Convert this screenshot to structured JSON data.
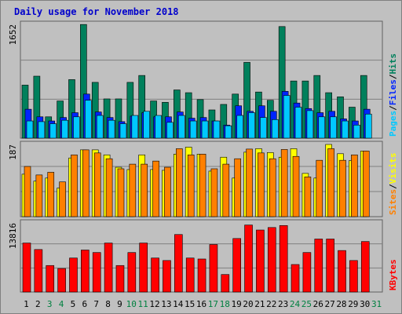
{
  "title": "Daily usage for November 2018",
  "colors": {
    "hits": "#00805c",
    "files": "#0024ff",
    "pages": "#00c8ff",
    "visits": "#ffff00",
    "sites": "#ff8000",
    "kbytes": "#ff0000",
    "weekend_day_label": "#008040",
    "weekday_label": "#000000",
    "background": "#c0c0c0",
    "grid": "#808080"
  },
  "chart_data": [
    {
      "type": "bar",
      "panel": "hits",
      "ymax_label": "1652",
      "ylim": [
        0,
        1652
      ],
      "legend": [
        "Pages",
        "/",
        "Files",
        "/",
        "Hits"
      ],
      "categories": [
        "1",
        "2",
        "3",
        "4",
        "5",
        "6",
        "7",
        "8",
        "9",
        "10",
        "11",
        "12",
        "13",
        "14",
        "15",
        "16",
        "17",
        "18",
        "19",
        "20",
        "21",
        "22",
        "23",
        "24",
        "25",
        "26",
        "27",
        "28",
        "29",
        "30",
        "31"
      ],
      "weekend_days": [
        3,
        4,
        10,
        11,
        17,
        18,
        24,
        25,
        31
      ],
      "series": [
        {
          "name": "Hits",
          "values": [
            770,
            900,
            310,
            540,
            850,
            1650,
            810,
            570,
            570,
            810,
            910,
            540,
            520,
            700,
            660,
            560,
            410,
            490,
            640,
            1100,
            670,
            550,
            1620,
            830,
            830,
            910,
            660,
            600,
            450,
            910,
            0
          ]
        },
        {
          "name": "Files",
          "values": [
            420,
            310,
            250,
            300,
            370,
            640,
            380,
            300,
            240,
            320,
            370,
            310,
            310,
            380,
            290,
            300,
            250,
            190,
            470,
            390,
            470,
            390,
            680,
            510,
            430,
            370,
            390,
            280,
            250,
            420,
            0
          ]
        },
        {
          "name": "Pages",
          "values": [
            250,
            240,
            210,
            260,
            310,
            550,
            330,
            260,
            210,
            330,
            390,
            330,
            230,
            330,
            250,
            250,
            250,
            180,
            330,
            370,
            300,
            270,
            620,
            450,
            400,
            310,
            310,
            250,
            190,
            350,
            0
          ]
        }
      ]
    },
    {
      "type": "bar",
      "panel": "visits",
      "ymax_label": "187",
      "ylim": [
        0,
        187
      ],
      "legend": [
        "Sites",
        "/",
        "Visits"
      ],
      "categories": [
        "1",
        "2",
        "3",
        "4",
        "5",
        "6",
        "7",
        "8",
        "9",
        "10",
        "11",
        "12",
        "13",
        "14",
        "15",
        "16",
        "17",
        "18",
        "19",
        "20",
        "21",
        "22",
        "23",
        "24",
        "25",
        "26",
        "27",
        "28",
        "29",
        "30",
        "31"
      ],
      "series": [
        {
          "name": "Visits",
          "values": [
            110,
            92,
            100,
            74,
            152,
            173,
            173,
            160,
            128,
            122,
            160,
            122,
            120,
            162,
            180,
            162,
            118,
            154,
            100,
            167,
            176,
            166,
            154,
            176,
            112,
            100,
            187,
            163,
            145,
            170,
            0
          ]
        },
        {
          "name": "Sites",
          "values": [
            130,
            108,
            115,
            90,
            160,
            173,
            165,
            150,
            124,
            136,
            136,
            144,
            128,
            176,
            160,
            162,
            124,
            136,
            150,
            175,
            165,
            150,
            174,
            156,
            103,
            146,
            176,
            146,
            160,
            170,
            0
          ]
        }
      ]
    },
    {
      "type": "bar",
      "panel": "kbytes",
      "ymax_label": "13816",
      "ylim": [
        0,
        13816
      ],
      "legend": [
        "KBytes"
      ],
      "categories": [
        "1",
        "2",
        "3",
        "4",
        "5",
        "6",
        "7",
        "8",
        "9",
        "10",
        "11",
        "12",
        "13",
        "14",
        "15",
        "16",
        "17",
        "18",
        "19",
        "20",
        "21",
        "22",
        "23",
        "24",
        "25",
        "26",
        "27",
        "28",
        "29",
        "30",
        "31"
      ],
      "series": [
        {
          "name": "KBytes",
          "values": [
            9800,
            8500,
            5300,
            4700,
            6800,
            8400,
            7900,
            9800,
            5300,
            7900,
            9800,
            6800,
            6300,
            11500,
            6800,
            6600,
            9500,
            3500,
            10700,
            13400,
            12400,
            12900,
            13300,
            5500,
            7900,
            10600,
            10600,
            8300,
            6300,
            10100,
            0
          ]
        }
      ]
    }
  ],
  "x_labels": [
    "1",
    "2",
    "3",
    "4",
    "5",
    "6",
    "7",
    "8",
    "9",
    "10",
    "11",
    "12",
    "13",
    "14",
    "15",
    "16",
    "17",
    "18",
    "19",
    "20",
    "21",
    "22",
    "23",
    "24",
    "25",
    "26",
    "27",
    "28",
    "29",
    "30",
    "31"
  ]
}
